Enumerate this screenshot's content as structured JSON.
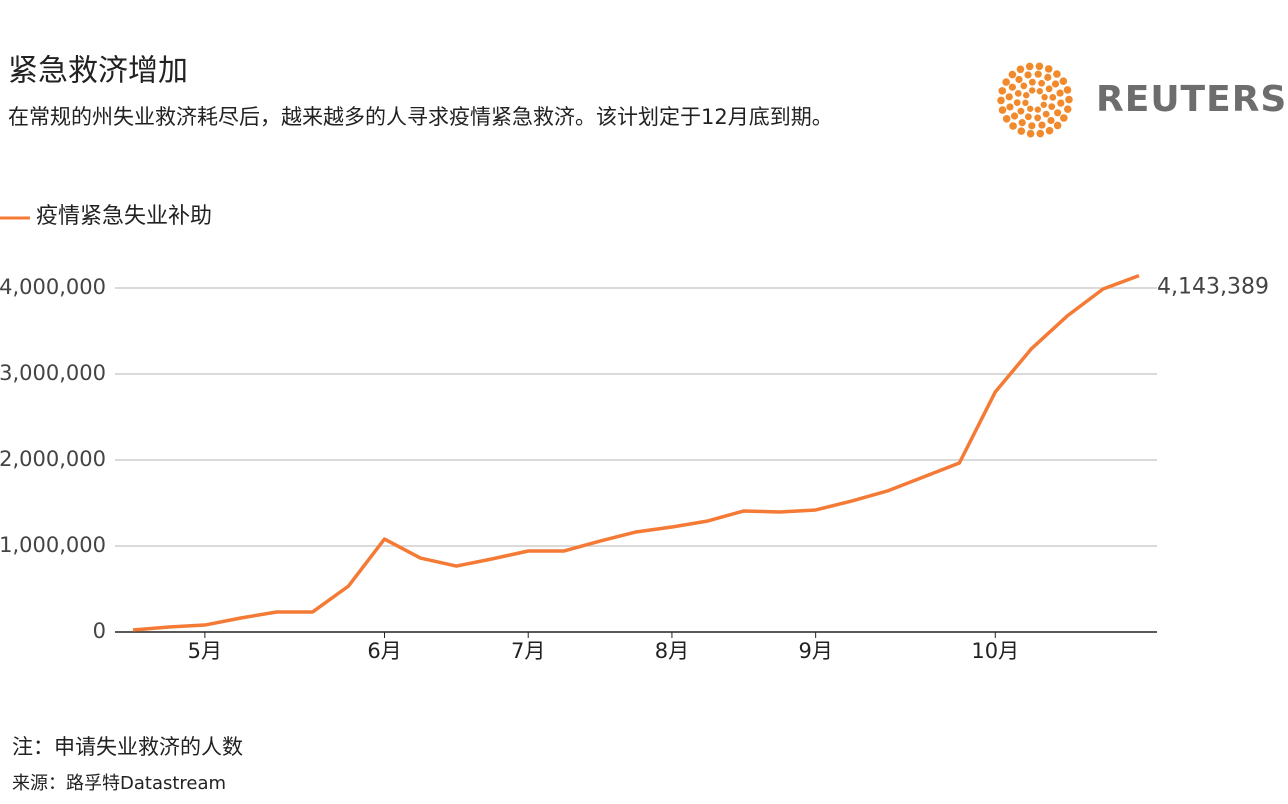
{
  "chart_data": {
    "type": "line",
    "title": "紧急救济增加",
    "subtitle": "在常规的州失业救济耗尽后，越来越多的人寻求疫情紧急救济。该计划定于12月底到期。",
    "logo": "REUTERS",
    "note": "注：申请失业救济的人数",
    "source": "来源：路孚特Datastream",
    "categories": [
      null,
      null,
      "5月",
      null,
      null,
      null,
      null,
      "6月",
      null,
      null,
      null,
      "7月",
      null,
      null,
      null,
      "8月",
      null,
      null,
      null,
      "9月",
      null,
      null,
      null,
      null,
      "10月",
      null,
      null,
      null,
      null
    ],
    "series": [
      {
        "name": "疫情紧急失业补助",
        "color": "#f47a35",
        "values": [
          23000,
          58000,
          81000,
          163000,
          233000,
          233000,
          535000,
          1081000,
          860000,
          767000,
          850000,
          942000,
          942000,
          1058000,
          1163000,
          1221000,
          1291000,
          1407000,
          1395000,
          1419000,
          1523000,
          1640000,
          1802000,
          1965000,
          2791000,
          3291000,
          3674000,
          3988000,
          4143389
        ],
        "value_labels": [
          null,
          null,
          null,
          null,
          null,
          null,
          null,
          null,
          null,
          null,
          null,
          null,
          null,
          null,
          null,
          null,
          null,
          null,
          null,
          null,
          null,
          null,
          null,
          null,
          null,
          null,
          null,
          null,
          "4,143,389"
        ]
      }
    ],
    "ylim": [
      0,
      4000000
    ],
    "yticks": [
      0,
      {
        "value": 1000000,
        "label": "1,000,000"
      },
      {
        "value": 2000000,
        "label": "2,000,000"
      },
      {
        "value": 3000000,
        "label": "3,000,000"
      },
      {
        "value": 4000000,
        "label": "4,000,000"
      }
    ],
    "grid": true,
    "legend": "top-left"
  }
}
